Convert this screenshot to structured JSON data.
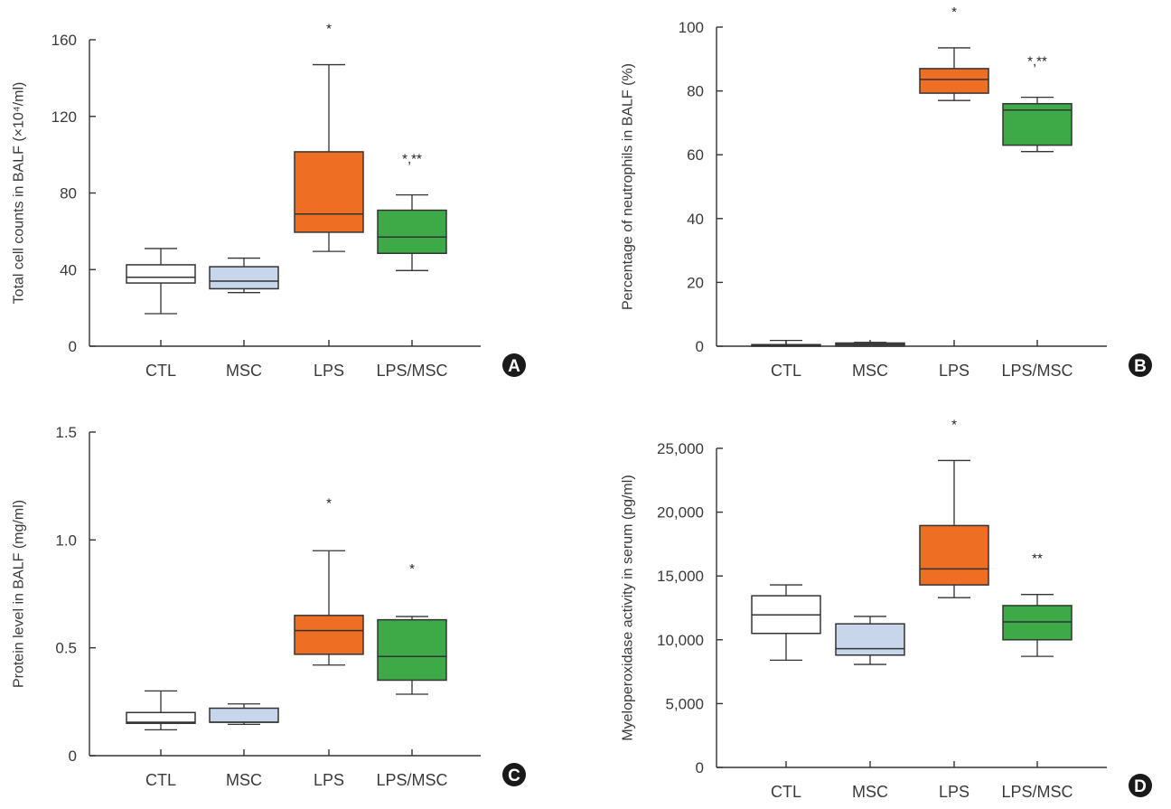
{
  "chart_data": [
    {
      "type": "box",
      "panel": "A",
      "title": "",
      "ylabel": "Total cell counts in BALF (×10⁴/ml)",
      "xlabel": "",
      "categories": [
        "CTL",
        "MSC",
        "LPS",
        "LPS/MSC"
      ],
      "ylim": [
        0,
        160
      ],
      "yticks": [
        0,
        40,
        80,
        120,
        160
      ],
      "ytick_labels": [
        "0",
        "40",
        "80",
        "120",
        "160"
      ],
      "boxes": [
        {
          "category": "CTL",
          "whisker_low": 17,
          "q1": 33,
          "median": 36,
          "q3": 42.5,
          "whisker_high": 51,
          "color": "#ffffff",
          "annotation": ""
        },
        {
          "category": "MSC",
          "whisker_low": 28,
          "q1": 30,
          "median": 34,
          "q3": 41.5,
          "whisker_high": 46,
          "color": "#c8d6ec",
          "annotation": ""
        },
        {
          "category": "LPS",
          "whisker_low": 49.5,
          "q1": 59.5,
          "median": 69,
          "q3": 101.5,
          "whisker_high": 147,
          "color": "#ee6e23",
          "annotation": "*"
        },
        {
          "category": "LPS/MSC",
          "whisker_low": 39.5,
          "q1": 48.5,
          "median": 57,
          "q3": 71,
          "whisker_high": 79,
          "color": "#3daa47",
          "annotation": "*,**"
        }
      ],
      "grid": false
    },
    {
      "type": "box",
      "panel": "B",
      "title": "",
      "ylabel": "Percentage of neutrophils in BALF (%)",
      "xlabel": "",
      "categories": [
        "CTL",
        "MSC",
        "LPS",
        "LPS/MSC"
      ],
      "ylim": [
        0,
        100
      ],
      "yticks": [
        0,
        20,
        40,
        60,
        80,
        100
      ],
      "ytick_labels": [
        "0",
        "20",
        "40",
        "60",
        "80",
        "100"
      ],
      "boxes": [
        {
          "category": "CTL",
          "whisker_low": 0,
          "q1": 0,
          "median": 0.3,
          "q3": 0.5,
          "whisker_high": 1.8,
          "color": "#ffffff",
          "annotation": ""
        },
        {
          "category": "MSC",
          "whisker_low": 0,
          "q1": 0,
          "median": 0.5,
          "q3": 1.0,
          "whisker_high": 1.2,
          "color": "#6b6b6b",
          "annotation": ""
        },
        {
          "category": "LPS",
          "whisker_low": 77,
          "q1": 79.3,
          "median": 83.6,
          "q3": 87,
          "whisker_high": 93.5,
          "color": "#ee6e23",
          "annotation": "*"
        },
        {
          "category": "LPS/MSC",
          "whisker_low": 61,
          "q1": 63,
          "median": 74,
          "q3": 76,
          "whisker_high": 78,
          "color": "#3daa47",
          "annotation": "*,**"
        }
      ],
      "grid": false
    },
    {
      "type": "box",
      "panel": "C",
      "title": "",
      "ylabel": "Protein level in BALF (mg/ml)",
      "xlabel": "",
      "categories": [
        "CTL",
        "MSC",
        "LPS",
        "LPS/MSC"
      ],
      "ylim": [
        0,
        1.5
      ],
      "yticks": [
        0,
        0.5,
        1.0,
        1.5
      ],
      "ytick_labels": [
        "0",
        "0.5",
        "1.0",
        "1.5"
      ],
      "boxes": [
        {
          "category": "CTL",
          "whisker_low": 0.12,
          "q1": 0.15,
          "median": 0.155,
          "q3": 0.2,
          "whisker_high": 0.3,
          "color": "#ffffff",
          "annotation": ""
        },
        {
          "category": "MSC",
          "whisker_low": 0.145,
          "q1": 0.155,
          "median": 0.155,
          "q3": 0.22,
          "whisker_high": 0.24,
          "color": "#c8d6ec",
          "annotation": ""
        },
        {
          "category": "LPS",
          "whisker_low": 0.42,
          "q1": 0.47,
          "median": 0.58,
          "q3": 0.65,
          "whisker_high": 0.95,
          "color": "#ee6e23",
          "annotation": "*"
        },
        {
          "category": "LPS/MSC",
          "whisker_low": 0.285,
          "q1": 0.35,
          "median": 0.46,
          "q3": 0.63,
          "whisker_high": 0.645,
          "color": "#3daa47",
          "annotation": "*"
        }
      ],
      "grid": false
    },
    {
      "type": "box",
      "panel": "D",
      "title": "",
      "ylabel": "Myeloperoxidase activity in serum (pg/ml)",
      "xlabel": "",
      "categories": [
        "CTL",
        "MSC",
        "LPS",
        "LPS/MSC"
      ],
      "ylim": [
        0,
        25000
      ],
      "yticks": [
        0,
        5000,
        10000,
        15000,
        20000,
        25000
      ],
      "ytick_labels": [
        "0",
        "5,000",
        "10,000",
        "15,000",
        "20,000",
        "25,000"
      ],
      "boxes": [
        {
          "category": "CTL",
          "whisker_low": 8400,
          "q1": 10500,
          "median": 11950,
          "q3": 13450,
          "whisker_high": 14300,
          "color": "#ffffff",
          "annotation": ""
        },
        {
          "category": "MSC",
          "whisker_low": 8070,
          "q1": 8800,
          "median": 9300,
          "q3": 11250,
          "whisker_high": 11830,
          "color": "#c8d6ec",
          "annotation": ""
        },
        {
          "category": "LPS",
          "whisker_low": 13300,
          "q1": 14300,
          "median": 15550,
          "q3": 18950,
          "whisker_high": 24050,
          "color": "#ee6e23",
          "annotation": "*"
        },
        {
          "category": "LPS/MSC",
          "whisker_low": 8700,
          "q1": 10000,
          "median": 11400,
          "q3": 12680,
          "whisker_high": 13550,
          "color": "#3daa47",
          "annotation": "**"
        }
      ],
      "grid": false
    }
  ],
  "badges": [
    "A",
    "B",
    "C",
    "D"
  ]
}
